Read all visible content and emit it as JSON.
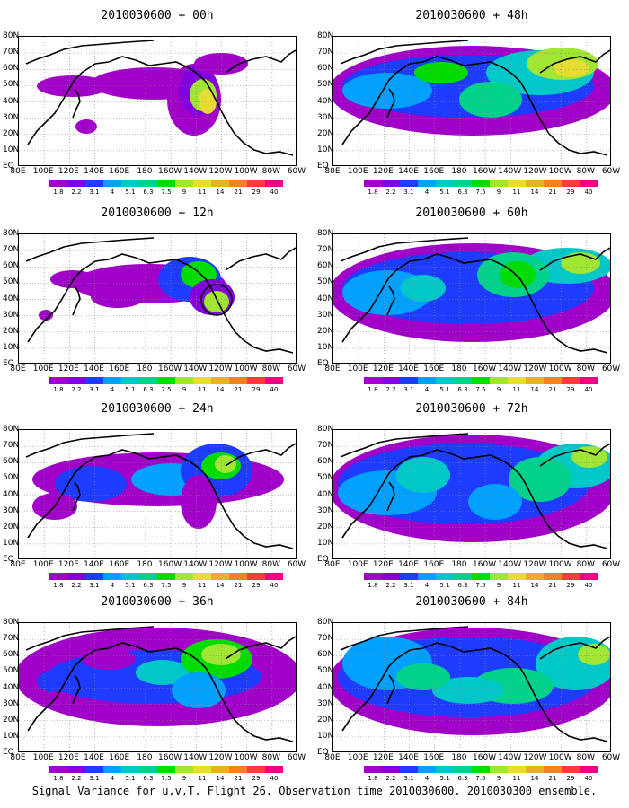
{
  "panels": [
    {
      "title": "2010030600 + 00h"
    },
    {
      "title": "2010030600 + 48h"
    },
    {
      "title": "2010030600 + 12h"
    },
    {
      "title": "2010030600 + 60h"
    },
    {
      "title": "2010030600 + 24h"
    },
    {
      "title": "2010030600 + 72h"
    },
    {
      "title": "2010030600 + 36h"
    },
    {
      "title": "2010030600 + 84h"
    }
  ],
  "lat_labels": [
    "80N",
    "70N",
    "60N",
    "50N",
    "40N",
    "30N",
    "20N",
    "10N",
    "EQ"
  ],
  "lon_labels": [
    "80E",
    "100E",
    "120E",
    "140E",
    "160E",
    "180",
    "160W",
    "140W",
    "120W",
    "100W",
    "80W",
    "60W"
  ],
  "colorbar": {
    "labels": [
      "1.8",
      "2.2",
      "3.1",
      "4",
      "5.1",
      "6.3",
      "7.5",
      "9",
      "11",
      "14",
      "21",
      "29",
      "40"
    ],
    "colors": [
      "#a000c8",
      "#8200dc",
      "#1e3cff",
      "#00a0ff",
      "#00c8c8",
      "#00d28c",
      "#00dc00",
      "#a0e632",
      "#e6dc32",
      "#e6af2d",
      "#f08228",
      "#fa3c3c",
      "#f00082"
    ]
  },
  "caption": "Signal Variance for u,v,T. Flight 26. Observation time 2010030600. 2010030300 ensemble."
}
